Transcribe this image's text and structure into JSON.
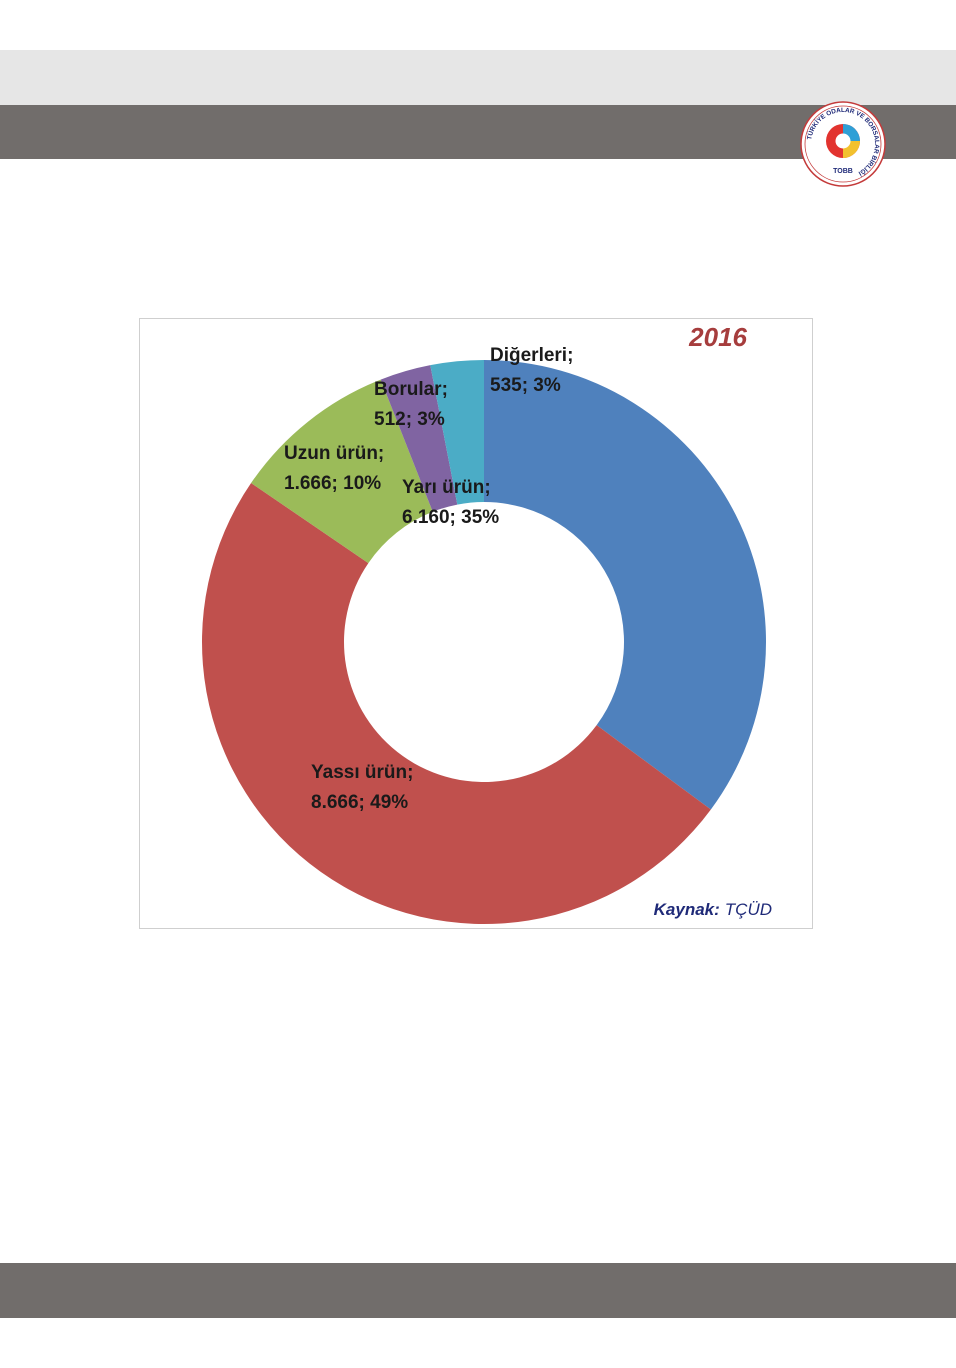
{
  "colors": {
    "header_light": "#e6e6e6",
    "header_dark": "#716d6b",
    "footer": "#716d6b"
  },
  "logo": {
    "ring_text": "TÜRKİYE ODALAR VE BORSALAR BİRLİĞİ",
    "short_name": "TOBB"
  },
  "chart_data": {
    "type": "pie",
    "style": "donut",
    "title": "2016",
    "source_label": "Kaynak:",
    "source_value": "TÇÜD",
    "slices": [
      {
        "name": "Yarı ürün",
        "value": 6160,
        "value_label": "6.160",
        "percent_label": "35%",
        "color": "#4f81bd"
      },
      {
        "name": "Yassı ürün",
        "value": 8666,
        "value_label": "8.666",
        "percent_label": "49%",
        "color": "#c0504d"
      },
      {
        "name": "Uzun ürün",
        "value": 1666,
        "value_label": "1.666",
        "percent_label": "10%",
        "color": "#9bbb59"
      },
      {
        "name": "Borular",
        "value": 512,
        "value_label": "512",
        "percent_label": "3%",
        "color": "#8064a2"
      },
      {
        "name": "Diğerleri",
        "value": 535,
        "value_label": "535",
        "percent_label": "3%",
        "color": "#4bacc6"
      }
    ]
  }
}
